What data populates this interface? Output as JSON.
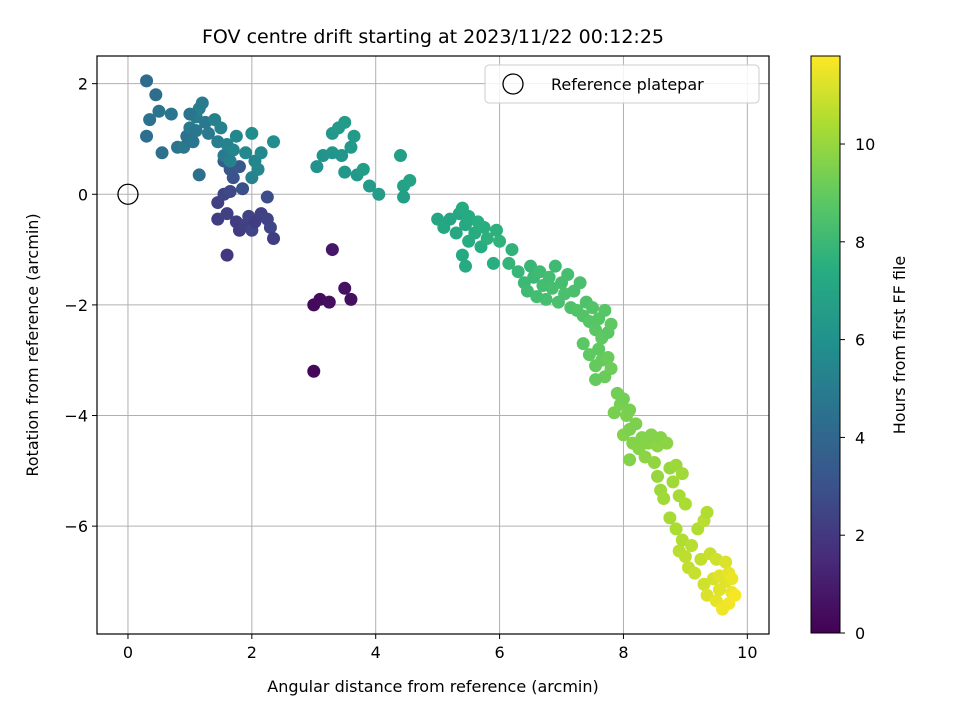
{
  "chart_data": {
    "type": "scatter",
    "title": "FOV centre drift starting at 2023/11/22 00:12:25",
    "xlabel": "Angular distance from reference (arcmin)",
    "ylabel": "Rotation from reference (arcmin)",
    "xlim": [
      -0.5,
      10.35
    ],
    "ylim": [
      -7.95,
      2.5
    ],
    "xticks": [
      0,
      2,
      4,
      6,
      8,
      10
    ],
    "yticks": [
      2,
      0,
      -2,
      -4,
      -6
    ],
    "grid": true,
    "legend": {
      "placement": "top-right",
      "entries": [
        "Reference platepar"
      ]
    },
    "reference_point": {
      "x": 0,
      "y": 0,
      "label": "Reference platepar"
    },
    "colorbar": {
      "label": "Hours from first FF file",
      "colormap": "viridis",
      "range": [
        0,
        11.8
      ],
      "ticks": [
        0,
        2,
        4,
        6,
        8,
        10
      ]
    },
    "points": [
      {
        "x": 3.0,
        "y": -3.2,
        "c": 0.2
      },
      {
        "x": 3.0,
        "y": -2.0,
        "c": 0.3
      },
      {
        "x": 3.1,
        "y": -1.9,
        "c": 0.4
      },
      {
        "x": 3.25,
        "y": -1.95,
        "c": 0.5
      },
      {
        "x": 3.5,
        "y": -1.7,
        "c": 0.6
      },
      {
        "x": 3.6,
        "y": -1.9,
        "c": 0.5
      },
      {
        "x": 3.3,
        "y": -1.0,
        "c": 0.8
      },
      {
        "x": 1.6,
        "y": -1.1,
        "c": 2.0
      },
      {
        "x": 1.45,
        "y": -0.45,
        "c": 2.2
      },
      {
        "x": 1.45,
        "y": -0.15,
        "c": 2.3
      },
      {
        "x": 1.55,
        "y": 0.0,
        "c": 2.4
      },
      {
        "x": 1.6,
        "y": -0.35,
        "c": 2.3
      },
      {
        "x": 1.75,
        "y": -0.5,
        "c": 2.2
      },
      {
        "x": 1.8,
        "y": -0.65,
        "c": 2.1
      },
      {
        "x": 1.9,
        "y": -0.55,
        "c": 2.3
      },
      {
        "x": 1.95,
        "y": -0.4,
        "c": 2.4
      },
      {
        "x": 2.0,
        "y": -0.65,
        "c": 2.5
      },
      {
        "x": 2.05,
        "y": -0.5,
        "c": 2.2
      },
      {
        "x": 2.15,
        "y": -0.35,
        "c": 2.3
      },
      {
        "x": 2.25,
        "y": -0.45,
        "c": 2.4
      },
      {
        "x": 2.3,
        "y": -0.6,
        "c": 2.5
      },
      {
        "x": 2.35,
        "y": -0.8,
        "c": 2.2
      },
      {
        "x": 2.25,
        "y": -0.05,
        "c": 2.8
      },
      {
        "x": 1.65,
        "y": 0.05,
        "c": 2.6
      },
      {
        "x": 1.7,
        "y": 0.3,
        "c": 3.0
      },
      {
        "x": 1.65,
        "y": 0.45,
        "c": 3.2
      },
      {
        "x": 1.8,
        "y": 0.5,
        "c": 3.3
      },
      {
        "x": 1.55,
        "y": 0.6,
        "c": 3.5
      },
      {
        "x": 1.85,
        "y": 0.1,
        "c": 2.9
      },
      {
        "x": 0.3,
        "y": 2.05,
        "c": 4.2
      },
      {
        "x": 0.45,
        "y": 1.8,
        "c": 4.3
      },
      {
        "x": 0.35,
        "y": 1.35,
        "c": 4.5
      },
      {
        "x": 0.3,
        "y": 1.05,
        "c": 4.4
      },
      {
        "x": 0.5,
        "y": 1.5,
        "c": 4.6
      },
      {
        "x": 0.55,
        "y": 0.75,
        "c": 4.5
      },
      {
        "x": 0.7,
        "y": 1.45,
        "c": 4.7
      },
      {
        "x": 0.8,
        "y": 0.85,
        "c": 4.6
      },
      {
        "x": 0.9,
        "y": 0.85,
        "c": 4.8
      },
      {
        "x": 0.95,
        "y": 1.05,
        "c": 4.5
      },
      {
        "x": 1.0,
        "y": 1.2,
        "c": 4.9
      },
      {
        "x": 1.05,
        "y": 0.95,
        "c": 4.7
      },
      {
        "x": 1.1,
        "y": 1.4,
        "c": 5.0
      },
      {
        "x": 1.15,
        "y": 1.55,
        "c": 5.1
      },
      {
        "x": 1.2,
        "y": 1.65,
        "c": 5.0
      },
      {
        "x": 1.25,
        "y": 1.3,
        "c": 4.8
      },
      {
        "x": 1.3,
        "y": 1.1,
        "c": 4.9
      },
      {
        "x": 1.1,
        "y": 1.15,
        "c": 4.7
      },
      {
        "x": 1.0,
        "y": 1.45,
        "c": 4.6
      },
      {
        "x": 1.15,
        "y": 0.35,
        "c": 4.4
      },
      {
        "x": 1.4,
        "y": 1.35,
        "c": 5.2
      },
      {
        "x": 1.5,
        "y": 1.2,
        "c": 5.3
      },
      {
        "x": 1.45,
        "y": 0.95,
        "c": 5.1
      },
      {
        "x": 1.55,
        "y": 0.7,
        "c": 4.9
      },
      {
        "x": 1.6,
        "y": 0.9,
        "c": 5.3
      },
      {
        "x": 1.7,
        "y": 0.8,
        "c": 5.4
      },
      {
        "x": 1.75,
        "y": 1.05,
        "c": 5.5
      },
      {
        "x": 1.9,
        "y": 0.75,
        "c": 5.6
      },
      {
        "x": 2.0,
        "y": 1.1,
        "c": 5.7
      },
      {
        "x": 2.05,
        "y": 0.6,
        "c": 5.4
      },
      {
        "x": 2.1,
        "y": 0.45,
        "c": 5.5
      },
      {
        "x": 2.15,
        "y": 0.75,
        "c": 5.6
      },
      {
        "x": 2.0,
        "y": 0.3,
        "c": 5.3
      },
      {
        "x": 2.35,
        "y": 0.95,
        "c": 5.8
      },
      {
        "x": 1.65,
        "y": 0.6,
        "c": 5.2
      },
      {
        "x": 3.05,
        "y": 0.5,
        "c": 6.0
      },
      {
        "x": 3.15,
        "y": 0.7,
        "c": 6.1
      },
      {
        "x": 3.3,
        "y": 0.75,
        "c": 6.2
      },
      {
        "x": 3.3,
        "y": 1.1,
        "c": 6.3
      },
      {
        "x": 3.4,
        "y": 1.2,
        "c": 6.4
      },
      {
        "x": 3.5,
        "y": 1.3,
        "c": 6.5
      },
      {
        "x": 3.45,
        "y": 0.7,
        "c": 6.2
      },
      {
        "x": 3.6,
        "y": 0.85,
        "c": 6.4
      },
      {
        "x": 3.65,
        "y": 1.05,
        "c": 6.5
      },
      {
        "x": 3.5,
        "y": 0.4,
        "c": 6.3
      },
      {
        "x": 3.7,
        "y": 0.35,
        "c": 6.4
      },
      {
        "x": 3.8,
        "y": 0.45,
        "c": 6.6
      },
      {
        "x": 3.9,
        "y": 0.15,
        "c": 6.5
      },
      {
        "x": 4.05,
        "y": 0.0,
        "c": 6.6
      },
      {
        "x": 4.4,
        "y": 0.7,
        "c": 6.7
      },
      {
        "x": 4.45,
        "y": 0.15,
        "c": 6.8
      },
      {
        "x": 4.55,
        "y": 0.25,
        "c": 6.9
      },
      {
        "x": 4.45,
        "y": -0.05,
        "c": 6.7
      },
      {
        "x": 5.0,
        "y": -0.45,
        "c": 7.0
      },
      {
        "x": 5.1,
        "y": -0.6,
        "c": 7.1
      },
      {
        "x": 5.2,
        "y": -0.45,
        "c": 7.0
      },
      {
        "x": 5.3,
        "y": -0.7,
        "c": 7.2
      },
      {
        "x": 5.35,
        "y": -0.35,
        "c": 7.1
      },
      {
        "x": 5.4,
        "y": -0.25,
        "c": 7.3
      },
      {
        "x": 5.45,
        "y": -0.55,
        "c": 7.2
      },
      {
        "x": 5.5,
        "y": -0.4,
        "c": 7.3
      },
      {
        "x": 5.5,
        "y": -0.85,
        "c": 7.4
      },
      {
        "x": 5.4,
        "y": -1.1,
        "c": 7.2
      },
      {
        "x": 5.45,
        "y": -1.3,
        "c": 7.3
      },
      {
        "x": 5.6,
        "y": -0.7,
        "c": 7.4
      },
      {
        "x": 5.65,
        "y": -0.5,
        "c": 7.5
      },
      {
        "x": 5.7,
        "y": -0.95,
        "c": 7.4
      },
      {
        "x": 5.75,
        "y": -0.6,
        "c": 7.5
      },
      {
        "x": 5.8,
        "y": -0.8,
        "c": 7.6
      },
      {
        "x": 5.9,
        "y": -1.25,
        "c": 7.5
      },
      {
        "x": 5.95,
        "y": -0.65,
        "c": 7.6
      },
      {
        "x": 6.0,
        "y": -0.85,
        "c": 7.7
      },
      {
        "x": 6.15,
        "y": -1.25,
        "c": 7.8
      },
      {
        "x": 6.2,
        "y": -1.0,
        "c": 7.7
      },
      {
        "x": 6.3,
        "y": -1.4,
        "c": 7.9
      },
      {
        "x": 6.4,
        "y": -1.6,
        "c": 8.0
      },
      {
        "x": 6.45,
        "y": -1.75,
        "c": 8.1
      },
      {
        "x": 6.5,
        "y": -1.3,
        "c": 7.9
      },
      {
        "x": 6.55,
        "y": -1.5,
        "c": 8.0
      },
      {
        "x": 6.6,
        "y": -1.85,
        "c": 8.2
      },
      {
        "x": 6.65,
        "y": -1.4,
        "c": 8.1
      },
      {
        "x": 6.7,
        "y": -1.65,
        "c": 8.2
      },
      {
        "x": 6.75,
        "y": -1.9,
        "c": 8.3
      },
      {
        "x": 6.8,
        "y": -1.5,
        "c": 8.2
      },
      {
        "x": 6.85,
        "y": -1.7,
        "c": 8.3
      },
      {
        "x": 6.9,
        "y": -1.3,
        "c": 8.1
      },
      {
        "x": 6.95,
        "y": -1.95,
        "c": 8.4
      },
      {
        "x": 7.0,
        "y": -1.6,
        "c": 8.3
      },
      {
        "x": 7.05,
        "y": -1.8,
        "c": 8.4
      },
      {
        "x": 7.1,
        "y": -1.45,
        "c": 8.3
      },
      {
        "x": 7.15,
        "y": -2.05,
        "c": 8.5
      },
      {
        "x": 7.2,
        "y": -1.75,
        "c": 8.4
      },
      {
        "x": 7.25,
        "y": -2.1,
        "c": 8.6
      },
      {
        "x": 7.3,
        "y": -1.6,
        "c": 8.4
      },
      {
        "x": 7.35,
        "y": -2.2,
        "c": 8.6
      },
      {
        "x": 7.4,
        "y": -1.95,
        "c": 8.5
      },
      {
        "x": 7.45,
        "y": -2.3,
        "c": 8.7
      },
      {
        "x": 7.5,
        "y": -2.05,
        "c": 8.6
      },
      {
        "x": 7.55,
        "y": -2.45,
        "c": 8.8
      },
      {
        "x": 7.6,
        "y": -2.25,
        "c": 8.7
      },
      {
        "x": 7.65,
        "y": -2.6,
        "c": 8.9
      },
      {
        "x": 7.7,
        "y": -2.1,
        "c": 8.7
      },
      {
        "x": 7.75,
        "y": -2.5,
        "c": 8.8
      },
      {
        "x": 7.8,
        "y": -2.35,
        "c": 8.9
      },
      {
        "x": 7.35,
        "y": -2.7,
        "c": 8.8
      },
      {
        "x": 7.45,
        "y": -2.9,
        "c": 8.9
      },
      {
        "x": 7.55,
        "y": -3.1,
        "c": 9.0
      },
      {
        "x": 7.6,
        "y": -2.8,
        "c": 8.9
      },
      {
        "x": 7.65,
        "y": -3.0,
        "c": 9.0
      },
      {
        "x": 7.7,
        "y": -3.3,
        "c": 9.1
      },
      {
        "x": 7.55,
        "y": -3.35,
        "c": 9.0
      },
      {
        "x": 7.75,
        "y": -2.95,
        "c": 9.1
      },
      {
        "x": 7.8,
        "y": -3.15,
        "c": 9.2
      },
      {
        "x": 7.9,
        "y": -3.6,
        "c": 9.3
      },
      {
        "x": 7.95,
        "y": -3.8,
        "c": 9.4
      },
      {
        "x": 8.0,
        "y": -3.7,
        "c": 9.3
      },
      {
        "x": 7.85,
        "y": -3.95,
        "c": 9.4
      },
      {
        "x": 8.05,
        "y": -4.0,
        "c": 9.5
      },
      {
        "x": 8.1,
        "y": -3.9,
        "c": 9.4
      },
      {
        "x": 8.0,
        "y": -4.35,
        "c": 9.6
      },
      {
        "x": 8.1,
        "y": -4.25,
        "c": 9.5
      },
      {
        "x": 8.15,
        "y": -4.5,
        "c": 9.6
      },
      {
        "x": 8.2,
        "y": -4.15,
        "c": 9.5
      },
      {
        "x": 8.25,
        "y": -4.6,
        "c": 9.7
      },
      {
        "x": 8.3,
        "y": -4.4,
        "c": 9.6
      },
      {
        "x": 8.35,
        "y": -4.75,
        "c": 9.8
      },
      {
        "x": 8.4,
        "y": -4.5,
        "c": 9.7
      },
      {
        "x": 8.45,
        "y": -4.35,
        "c": 9.6
      },
      {
        "x": 8.5,
        "y": -4.85,
        "c": 9.9
      },
      {
        "x": 8.55,
        "y": -4.55,
        "c": 9.8
      },
      {
        "x": 8.6,
        "y": -4.4,
        "c": 9.7
      },
      {
        "x": 8.1,
        "y": -4.8,
        "c": 9.6
      },
      {
        "x": 8.55,
        "y": -5.1,
        "c": 10.0
      },
      {
        "x": 8.6,
        "y": -5.35,
        "c": 10.1
      },
      {
        "x": 8.7,
        "y": -4.5,
        "c": 9.8
      },
      {
        "x": 8.75,
        "y": -4.95,
        "c": 10.0
      },
      {
        "x": 8.8,
        "y": -5.2,
        "c": 10.2
      },
      {
        "x": 8.85,
        "y": -4.9,
        "c": 10.1
      },
      {
        "x": 8.9,
        "y": -5.45,
        "c": 10.3
      },
      {
        "x": 8.95,
        "y": -5.05,
        "c": 10.2
      },
      {
        "x": 9.0,
        "y": -5.6,
        "c": 10.4
      },
      {
        "x": 8.65,
        "y": -5.5,
        "c": 10.2
      },
      {
        "x": 8.75,
        "y": -5.85,
        "c": 10.3
      },
      {
        "x": 8.85,
        "y": -6.05,
        "c": 10.4
      },
      {
        "x": 8.9,
        "y": -6.45,
        "c": 10.6
      },
      {
        "x": 8.95,
        "y": -6.25,
        "c": 10.5
      },
      {
        "x": 9.0,
        "y": -6.55,
        "c": 10.7
      },
      {
        "x": 9.05,
        "y": -6.75,
        "c": 10.8
      },
      {
        "x": 9.1,
        "y": -6.35,
        "c": 10.6
      },
      {
        "x": 9.15,
        "y": -6.85,
        "c": 10.9
      },
      {
        "x": 9.2,
        "y": -6.05,
        "c": 10.5
      },
      {
        "x": 9.25,
        "y": -6.6,
        "c": 10.8
      },
      {
        "x": 9.3,
        "y": -5.9,
        "c": 10.6
      },
      {
        "x": 9.35,
        "y": -5.75,
        "c": 10.5
      },
      {
        "x": 9.4,
        "y": -6.5,
        "c": 10.9
      },
      {
        "x": 9.3,
        "y": -7.05,
        "c": 11.0
      },
      {
        "x": 9.35,
        "y": -7.25,
        "c": 11.2
      },
      {
        "x": 9.45,
        "y": -6.95,
        "c": 11.1
      },
      {
        "x": 9.5,
        "y": -7.35,
        "c": 11.4
      },
      {
        "x": 9.55,
        "y": -7.15,
        "c": 11.3
      },
      {
        "x": 9.6,
        "y": -7.5,
        "c": 11.6
      },
      {
        "x": 9.65,
        "y": -7.0,
        "c": 11.3
      },
      {
        "x": 9.7,
        "y": -7.4,
        "c": 11.6
      },
      {
        "x": 9.75,
        "y": -7.2,
        "c": 11.5
      },
      {
        "x": 9.8,
        "y": -7.25,
        "c": 11.7
      },
      {
        "x": 9.5,
        "y": -6.6,
        "c": 11.0
      },
      {
        "x": 9.65,
        "y": -6.65,
        "c": 11.2
      },
      {
        "x": 9.55,
        "y": -6.9,
        "c": 11.3
      },
      {
        "x": 9.7,
        "y": -6.85,
        "c": 11.4
      },
      {
        "x": 9.75,
        "y": -6.95,
        "c": 11.5
      }
    ]
  }
}
